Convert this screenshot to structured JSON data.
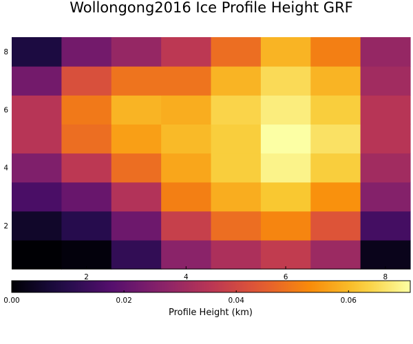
{
  "chart_data": {
    "type": "heatmap",
    "title": "Wollongong2016 Ice Profile Height GRF",
    "xlabel": "",
    "ylabel": "",
    "x": [
      1,
      2,
      3,
      4,
      5,
      6,
      7,
      8
    ],
    "y": [
      1,
      2,
      3,
      4,
      5,
      6,
      7,
      8
    ],
    "xlim": [
      0.5,
      8.5
    ],
    "ylim": [
      0.5,
      8.5
    ],
    "x_ticks": [
      "2",
      "4",
      "6",
      "8"
    ],
    "y_ticks": [
      "2",
      "4",
      "6",
      "8"
    ],
    "grid": false,
    "colormap": "inferno",
    "colorbar": {
      "label": "Profile Height (km)",
      "range": [
        0.0,
        0.071
      ],
      "ticks": [
        "0.00",
        "0.02",
        "0.04",
        "0.06"
      ],
      "orientation": "horizontal",
      "placement": "bottom"
    },
    "z": [
      [
        0.0,
        0.001,
        0.012,
        0.027,
        0.033,
        0.037,
        0.03,
        0.003
      ],
      [
        0.005,
        0.01,
        0.022,
        0.038,
        0.048,
        0.052,
        0.043,
        0.015
      ],
      [
        0.016,
        0.021,
        0.034,
        0.051,
        0.058,
        0.062,
        0.054,
        0.026
      ],
      [
        0.025,
        0.036,
        0.048,
        0.057,
        0.063,
        0.069,
        0.063,
        0.031
      ],
      [
        0.035,
        0.048,
        0.056,
        0.06,
        0.063,
        0.071,
        0.066,
        0.035
      ],
      [
        0.035,
        0.05,
        0.059,
        0.058,
        0.064,
        0.068,
        0.063,
        0.035
      ],
      [
        0.023,
        0.042,
        0.049,
        0.049,
        0.059,
        0.065,
        0.059,
        0.031
      ],
      [
        0.008,
        0.023,
        0.029,
        0.036,
        0.048,
        0.059,
        0.051,
        0.029
      ]
    ]
  }
}
